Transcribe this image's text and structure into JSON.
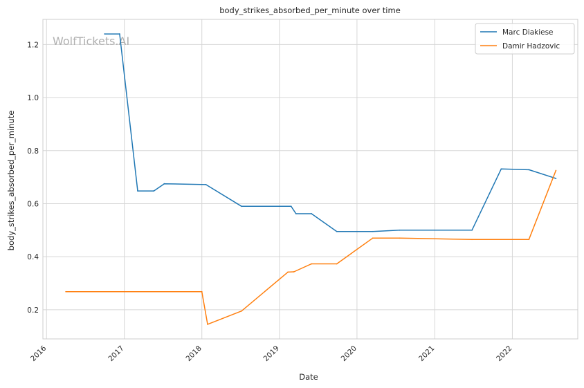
{
  "chart_data": {
    "type": "line",
    "title": "body_strikes_absorbed_per_minute over time",
    "xlabel": "Date",
    "ylabel": "body_strikes_absorbed_per_minute",
    "watermark": "WolfTickets.AI",
    "xlim": [
      "2015-12-15",
      "2022-11-05"
    ],
    "ylim": [
      0.09,
      1.295
    ],
    "x_ticks": [
      "2016",
      "2017",
      "2018",
      "2019",
      "2020",
      "2021",
      "2022"
    ],
    "y_ticks": [
      "0.2",
      "0.4",
      "0.6",
      "0.8",
      "1.0",
      "1.2"
    ],
    "grid": true,
    "legend_position": "top-right",
    "colors": {
      "Marc Diakiese": "#1f77b4",
      "Damir Hadzovic": "#ff7f0e",
      "grid": "#d6d6d6",
      "watermark": "#b0b0b0"
    },
    "series": [
      {
        "name": "Marc Diakiese",
        "points": [
          {
            "x": "2016-10-01",
            "y": 1.24
          },
          {
            "x": "2016-12-10",
            "y": 1.24
          },
          {
            "x": "2017-03-05",
            "y": 0.648
          },
          {
            "x": "2017-05-20",
            "y": 0.648
          },
          {
            "x": "2017-07-08",
            "y": 0.675
          },
          {
            "x": "2018-01-20",
            "y": 0.672
          },
          {
            "x": "2018-07-07",
            "y": 0.59
          },
          {
            "x": "2019-02-25",
            "y": 0.59
          },
          {
            "x": "2019-03-20",
            "y": 0.562
          },
          {
            "x": "2019-06-01",
            "y": 0.562
          },
          {
            "x": "2019-09-28",
            "y": 0.495
          },
          {
            "x": "2020-03-15",
            "y": 0.495
          },
          {
            "x": "2020-07-20",
            "y": 0.5
          },
          {
            "x": "2021-06-25",
            "y": 0.5
          },
          {
            "x": "2021-11-10",
            "y": 0.731
          },
          {
            "x": "2022-03-20",
            "y": 0.728
          },
          {
            "x": "2022-07-25",
            "y": 0.695
          }
        ]
      },
      {
        "name": "Damir Hadzovic",
        "points": [
          {
            "x": "2016-04-01",
            "y": 0.268
          },
          {
            "x": "2018-01-01",
            "y": 0.268
          },
          {
            "x": "2018-01-28",
            "y": 0.145
          },
          {
            "x": "2018-07-07",
            "y": 0.195
          },
          {
            "x": "2019-02-10",
            "y": 0.342
          },
          {
            "x": "2019-03-10",
            "y": 0.343
          },
          {
            "x": "2019-06-01",
            "y": 0.373
          },
          {
            "x": "2019-09-28",
            "y": 0.373
          },
          {
            "x": "2020-03-15",
            "y": 0.47
          },
          {
            "x": "2020-07-20",
            "y": 0.47
          },
          {
            "x": "2021-06-25",
            "y": 0.465
          },
          {
            "x": "2022-03-20",
            "y": 0.465
          },
          {
            "x": "2022-07-25",
            "y": 0.725
          }
        ]
      }
    ]
  }
}
